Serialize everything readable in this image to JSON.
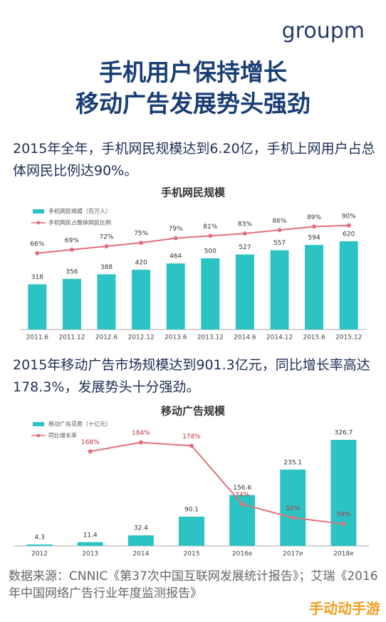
{
  "logo": "groupm",
  "headline": [
    "手机用户保持增长",
    "移动广告发展势头强劲"
  ],
  "paragraphs": [
    "2015年全年，手机网民规模达到6.20亿，手机上网用户占总体网民比例达90%。",
    "2015年移动广告市场规模达到901.3亿元，同比增长率高达178.3%，发展势头十分强劲。"
  ],
  "source": "数据来源：CNNIC《第37次中国互联网发展统计报告》；艾瑞《2016年中国网络广告行业年度监测报告》",
  "watermark": "手动动手游",
  "chart_data": [
    {
      "type": "combo",
      "title": "手机网民规模",
      "categories": [
        "2011.6",
        "2011.12",
        "2012.6",
        "2012.12",
        "2013.6",
        "2013.12",
        "2014.6",
        "2014.12",
        "2015.6",
        "2015.12"
      ],
      "series": [
        {
          "name": "手机网民规模（百万人）",
          "type": "bar",
          "color": "#2cc3c4",
          "values": [
            318,
            356,
            388,
            420,
            464,
            500,
            527,
            557,
            594,
            620
          ]
        },
        {
          "name": "手机网民占整体网民比例",
          "type": "line",
          "color": "#e0707a",
          "values": [
            66,
            69,
            72,
            75,
            79,
            81,
            83,
            86,
            89,
            90
          ],
          "value_labels": [
            "66%",
            "69%",
            "72%",
            "75%",
            "79%",
            "81%",
            "83%",
            "86%",
            "89%",
            "90%"
          ]
        }
      ]
    },
    {
      "type": "combo",
      "title": "移动广告规模",
      "categories": [
        "2012",
        "2013",
        "2014",
        "2015",
        "2016e",
        "2017e",
        "2018e"
      ],
      "series": [
        {
          "name": "移动广告花费（十亿元）",
          "type": "bar",
          "color": "#2cc3c4",
          "values": [
            4.3,
            11.4,
            32.4,
            90.1,
            156.6,
            235.1,
            326.7
          ]
        },
        {
          "name": "同比增长率",
          "type": "line",
          "color": "#e0707a",
          "values": [
            null,
            168,
            184,
            178,
            74,
            50,
            39
          ],
          "value_labels": [
            null,
            "168%",
            "184%",
            "178%",
            "74%",
            "50%",
            "39%"
          ]
        }
      ]
    }
  ]
}
